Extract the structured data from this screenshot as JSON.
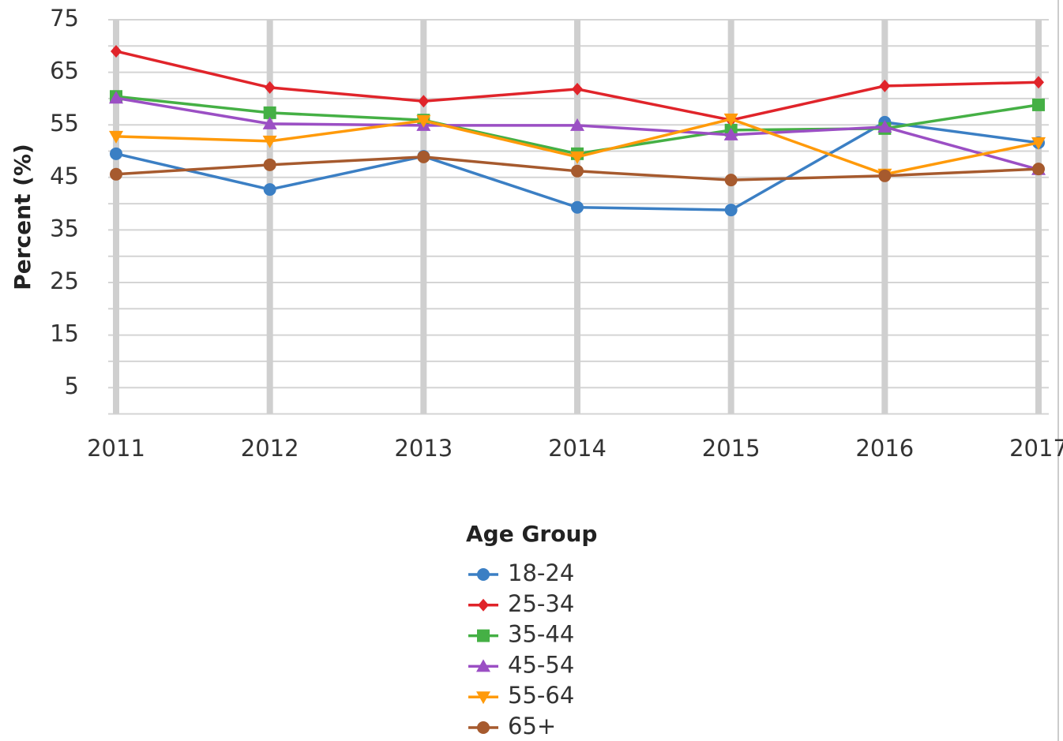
{
  "chart_data": {
    "type": "line",
    "y_label": "Percent (%)",
    "legend_title": "Age Group",
    "x": [
      2011,
      2012,
      2013,
      2014,
      2015,
      2016,
      2017
    ],
    "xlim": [
      2011,
      2017
    ],
    "xticks": [
      2011,
      2012,
      2013,
      2014,
      2015,
      2016,
      2017
    ],
    "ylim": [
      0,
      75
    ],
    "yticks": [
      5,
      15,
      25,
      35,
      45,
      55,
      65,
      75
    ],
    "minor_yticks": [
      0,
      10,
      20,
      30,
      40,
      50,
      60,
      70
    ],
    "grid": true,
    "series": [
      {
        "name": "18-24",
        "color": "#3b7fc4",
        "marker": "circle",
        "values": [
          49.5,
          42.7,
          49,
          39.3,
          38.8,
          55.5,
          51.6
        ]
      },
      {
        "name": "25-34",
        "color": "#e0242a",
        "marker": "diamond",
        "values": [
          69,
          62.1,
          59.5,
          61.8,
          55.9,
          62.4,
          63.1
        ]
      },
      {
        "name": "35-44",
        "color": "#45b045",
        "marker": "square",
        "values": [
          60.4,
          57.3,
          55.9,
          49.5,
          54,
          54.3,
          58.8
        ]
      },
      {
        "name": "45-54",
        "color": "#9b4fc4",
        "marker": "triangle-up",
        "values": [
          60.1,
          55.2,
          54.9,
          54.9,
          53.1,
          54.6,
          46.5
        ]
      },
      {
        "name": "55-64",
        "color": "#ff9a0a",
        "marker": "triangle-down",
        "values": [
          52.8,
          51.9,
          55.8,
          48.9,
          56.1,
          45.6,
          51.6
        ]
      },
      {
        "name": "65+",
        "color": "#a65a2e",
        "marker": "circle",
        "values": [
          45.6,
          47.4,
          48.9,
          46.2,
          44.5,
          45.3,
          46.6
        ]
      }
    ]
  }
}
